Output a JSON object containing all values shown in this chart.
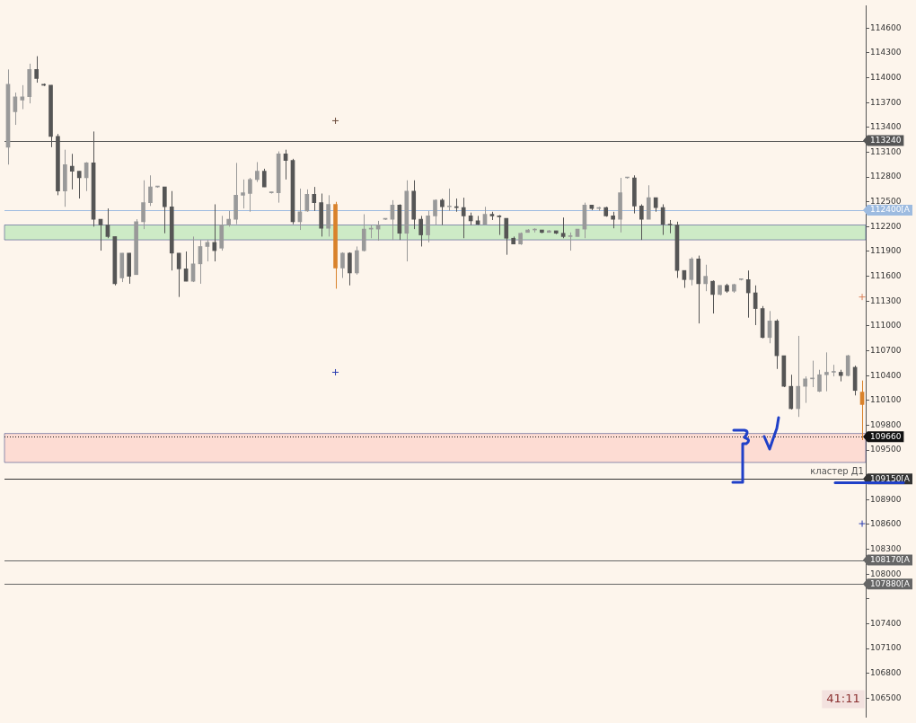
{
  "chart_data": {
    "type": "candlestick",
    "categories": [
      null,
      null,
      null,
      null,
      null,
      null,
      null,
      null,
      null,
      null,
      null,
      null,
      null,
      null,
      null,
      null,
      null,
      null,
      null,
      null,
      null,
      null,
      null,
      null,
      null,
      null,
      null,
      null,
      null,
      null,
      null,
      null,
      null,
      null,
      null,
      null,
      null,
      null,
      null,
      null,
      null,
      null,
      null,
      null,
      null,
      null,
      null,
      null,
      null,
      null,
      null,
      null,
      null,
      null,
      null,
      null,
      null,
      null,
      null,
      null,
      null,
      null,
      null,
      null,
      null,
      null,
      null,
      null,
      null,
      null,
      null,
      null,
      null,
      null,
      null,
      null,
      null,
      null,
      null,
      null,
      null,
      null,
      null,
      null,
      null,
      null,
      null,
      null,
      null,
      null,
      null,
      null,
      null,
      null,
      null,
      null,
      null,
      null,
      null,
      null,
      null,
      null,
      null,
      null,
      null,
      null,
      null,
      null,
      null,
      null,
      null,
      null,
      null,
      null,
      null,
      null,
      null,
      null,
      null,
      null,
      null
    ],
    "ohlc": [
      [
        113160,
        114100,
        112950,
        113920
      ],
      [
        113590,
        113820,
        113430,
        113770
      ],
      [
        113730,
        113910,
        113620,
        113770
      ],
      [
        113770,
        114170,
        113690,
        114100
      ],
      [
        114100,
        114260,
        113940,
        113990
      ],
      [
        113920,
        113930,
        113900,
        113910
      ],
      [
        113910,
        113910,
        113160,
        113290
      ],
      [
        113290,
        113320,
        112580,
        112630
      ],
      [
        112630,
        113130,
        112440,
        112950
      ],
      [
        112930,
        113080,
        112650,
        112870
      ],
      [
        112870,
        112870,
        112540,
        112790
      ],
      [
        112790,
        112980,
        112630,
        112970
      ],
      [
        112970,
        113350,
        112200,
        112290
      ],
      [
        112290,
        112290,
        111910,
        112220
      ],
      [
        112220,
        112420,
        112060,
        112080
      ],
      [
        112080,
        112080,
        111490,
        111510
      ],
      [
        111580,
        111880,
        111530,
        111880
      ],
      [
        111880,
        111880,
        111510,
        111600
      ],
      [
        111620,
        112290,
        111620,
        112260
      ],
      [
        112260,
        112760,
        112170,
        112490
      ],
      [
        112490,
        112820,
        112450,
        112680
      ],
      [
        112680,
        112690,
        112670,
        112680
      ],
      [
        112680,
        112680,
        112120,
        112440
      ],
      [
        112440,
        112630,
        111670,
        111880
      ],
      [
        111880,
        111880,
        111350,
        111690
      ],
      [
        111690,
        111900,
        111540,
        111540
      ],
      [
        111540,
        112080,
        111530,
        111750
      ],
      [
        111750,
        112040,
        111510,
        111960
      ],
      [
        111960,
        112040,
        111780,
        112010
      ],
      [
        112010,
        112470,
        111780,
        111910
      ],
      [
        111940,
        112330,
        111910,
        112220
      ],
      [
        112220,
        112390,
        112200,
        112290
      ],
      [
        112290,
        112970,
        112230,
        112580
      ],
      [
        112580,
        112770,
        112420,
        112610
      ],
      [
        112600,
        112790,
        112380,
        112770
      ],
      [
        112770,
        112980,
        112740,
        112870
      ],
      [
        112870,
        112900,
        112680,
        112680
      ],
      [
        112610,
        112620,
        112600,
        112610
      ],
      [
        112610,
        113110,
        112490,
        113080
      ],
      [
        113080,
        113130,
        112770,
        113000
      ],
      [
        113000,
        113020,
        112230,
        112260
      ],
      [
        112260,
        112660,
        112160,
        112380
      ],
      [
        112390,
        112650,
        112380,
        112590
      ],
      [
        112590,
        112680,
        112390,
        112490
      ],
      [
        112490,
        112600,
        112080,
        112180
      ],
      [
        112180,
        112580,
        112080,
        112470
      ],
      [
        112470,
        112500,
        111450,
        111700
      ],
      [
        111700,
        111890,
        111580,
        111880
      ],
      [
        111880,
        111890,
        111490,
        111640
      ],
      [
        111640,
        111960,
        111620,
        111910
      ],
      [
        111910,
        112350,
        111900,
        112170
      ],
      [
        112170,
        112220,
        112060,
        112170
      ],
      [
        112170,
        112270,
        112030,
        112220
      ],
      [
        112290,
        112300,
        112280,
        112290
      ],
      [
        112290,
        112520,
        112040,
        112460
      ],
      [
        112460,
        112470,
        112040,
        112120
      ],
      [
        112120,
        112760,
        111780,
        112630
      ],
      [
        112630,
        112760,
        112170,
        112290
      ],
      [
        112290,
        112330,
        111960,
        112100
      ],
      [
        112100,
        112390,
        112010,
        112330
      ],
      [
        112330,
        112530,
        112220,
        112520
      ],
      [
        112520,
        112540,
        112220,
        112440
      ],
      [
        112440,
        112660,
        112390,
        112440
      ],
      [
        112440,
        112540,
        112380,
        112430
      ],
      [
        112430,
        112550,
        112060,
        112330
      ],
      [
        112330,
        112370,
        112220,
        112270
      ],
      [
        112270,
        112330,
        112220,
        112230
      ],
      [
        112230,
        112440,
        112220,
        112350
      ],
      [
        112350,
        112380,
        112280,
        112330
      ],
      [
        112330,
        112340,
        112100,
        112320
      ],
      [
        112300,
        112300,
        111860,
        112060
      ],
      [
        112060,
        112080,
        111990,
        111990
      ],
      [
        111990,
        112130,
        111980,
        112120
      ],
      [
        112130,
        112170,
        112130,
        112160
      ],
      [
        112160,
        112180,
        112130,
        112170
      ],
      [
        112160,
        112160,
        112120,
        112130
      ],
      [
        112130,
        112160,
        112130,
        112150
      ],
      [
        112150,
        112150,
        112110,
        112120
      ],
      [
        112120,
        112310,
        112060,
        112080
      ],
      [
        112080,
        112130,
        111910,
        112080
      ],
      [
        112080,
        112170,
        112080,
        112170
      ],
      [
        112170,
        112490,
        112060,
        112460
      ],
      [
        112460,
        112460,
        112400,
        112420
      ],
      [
        112420,
        112440,
        112390,
        112430
      ],
      [
        112430,
        112440,
        112320,
        112330
      ],
      [
        112330,
        112380,
        112180,
        112290
      ],
      [
        112290,
        112790,
        112130,
        112610
      ],
      [
        112790,
        112800,
        112780,
        112790
      ],
      [
        112790,
        112820,
        112360,
        112450
      ],
      [
        112450,
        112470,
        112040,
        112290
      ],
      [
        112290,
        112700,
        112290,
        112550
      ],
      [
        112550,
        112550,
        112380,
        112430
      ],
      [
        112430,
        112470,
        112100,
        112230
      ],
      [
        112230,
        112280,
        112120,
        112220
      ],
      [
        112220,
        112260,
        111580,
        111670
      ],
      [
        111670,
        111670,
        111460,
        111560
      ],
      [
        111560,
        111830,
        111490,
        111810
      ],
      [
        111810,
        111850,
        111030,
        111510
      ],
      [
        111510,
        111740,
        111420,
        111600
      ],
      [
        111540,
        111550,
        111150,
        111380
      ],
      [
        111380,
        111490,
        111370,
        111490
      ],
      [
        111490,
        111510,
        111400,
        111420
      ],
      [
        111420,
        111510,
        111400,
        111500
      ],
      [
        111560,
        111570,
        111550,
        111560
      ],
      [
        111560,
        111670,
        111100,
        111400
      ],
      [
        111400,
        111490,
        111010,
        111210
      ],
      [
        111210,
        111240,
        110850,
        110860
      ],
      [
        110860,
        111180,
        110790,
        111060
      ],
      [
        111060,
        111080,
        110480,
        110640
      ],
      [
        110640,
        110640,
        110260,
        110270
      ],
      [
        110270,
        110410,
        109990,
        110000
      ],
      [
        110000,
        110880,
        109900,
        110270
      ],
      [
        110270,
        110390,
        110070,
        110360
      ],
      [
        110360,
        110580,
        110260,
        110370
      ],
      [
        110210,
        110470,
        110200,
        110410
      ],
      [
        110410,
        110680,
        110210,
        110440
      ],
      [
        110440,
        110530,
        110390,
        110440
      ],
      [
        110440,
        110470,
        110330,
        110400
      ],
      [
        110400,
        110650,
        110390,
        110640
      ],
      [
        110500,
        110520,
        110160,
        110220
      ],
      [
        110200,
        110340,
        109620,
        110050
      ]
    ],
    "colors": [
      "#999999",
      "#999999",
      "#999999",
      "#999999",
      "#555555",
      "#555555",
      "#555555",
      "#555555",
      "#999999",
      "#555555",
      "#555555",
      "#999999",
      "#555555",
      "#555555",
      "#555555",
      "#555555",
      "#999999",
      "#555555",
      "#999999",
      "#999999",
      "#999999",
      "#999999",
      "#555555",
      "#555555",
      "#555555",
      "#555555",
      "#999999",
      "#999999",
      "#999999",
      "#555555",
      "#999999",
      "#999999",
      "#999999",
      "#999999",
      "#999999",
      "#999999",
      "#555555",
      "#999999",
      "#999999",
      "#555555",
      "#555555",
      "#999999",
      "#999999",
      "#555555",
      "#555555",
      "#999999",
      "#d9822b",
      "#999999",
      "#555555",
      "#999999",
      "#999999",
      "#999999",
      "#999999",
      "#999999",
      "#999999",
      "#555555",
      "#999999",
      "#555555",
      "#555555",
      "#999999",
      "#999999",
      "#555555",
      "#999999",
      "#555555",
      "#555555",
      "#555555",
      "#555555",
      "#999999",
      "#555555",
      "#555555",
      "#555555",
      "#555555",
      "#999999",
      "#999999",
      "#999999",
      "#555555",
      "#999999",
      "#555555",
      "#555555",
      "#999999",
      "#999999",
      "#999999",
      "#555555",
      "#999999",
      "#555555",
      "#555555",
      "#999999",
      "#999999",
      "#555555",
      "#555555",
      "#999999",
      "#555555",
      "#555555",
      "#555555",
      "#555555",
      "#555555",
      "#999999",
      "#555555",
      "#999999",
      "#555555",
      "#999999",
      "#555555",
      "#999999",
      "#999999",
      "#555555",
      "#555555",
      "#555555",
      "#999999",
      "#555555",
      "#555555",
      "#555555",
      "#999999",
      "#999999",
      "#999999",
      "#999999",
      "#999999",
      "#999999",
      "#555555",
      "#999999",
      "#555555",
      "#d9822b"
    ],
    "series": [
      {
        "type": "scatter",
        "color": "#6b4a3a",
        "values": [
          null,
          null,
          null,
          null,
          null,
          null,
          null,
          null,
          null,
          null,
          null,
          null,
          null,
          null,
          null,
          null,
          null,
          null,
          null,
          null,
          null,
          null,
          null,
          null,
          null,
          null,
          null,
          null,
          null,
          null,
          null,
          null,
          null,
          null,
          null,
          null,
          null,
          null,
          null,
          null,
          null,
          null,
          null,
          null,
          null,
          null,
          113480,
          null,
          null,
          null,
          null,
          null,
          null,
          null,
          null,
          null,
          null,
          null,
          null,
          null,
          null,
          null,
          null,
          null,
          null,
          null,
          null,
          null,
          null,
          null,
          null,
          null,
          null,
          null,
          null,
          null,
          null,
          null,
          null,
          null,
          null,
          null,
          null,
          null,
          null,
          null,
          null,
          null,
          null,
          null,
          null,
          null,
          null,
          null,
          null,
          null,
          null,
          null,
          null,
          null,
          null,
          null,
          null,
          null,
          null,
          null,
          null,
          null,
          null,
          null,
          null,
          null,
          null,
          null,
          null,
          null,
          null,
          null,
          null,
          null,
          null
        ]
      },
      {
        "type": "scatter",
        "color": "#2a3cb0",
        "values": [
          null,
          null,
          null,
          null,
          null,
          null,
          null,
          null,
          null,
          null,
          null,
          null,
          null,
          null,
          null,
          null,
          null,
          null,
          null,
          null,
          null,
          null,
          null,
          null,
          null,
          null,
          null,
          null,
          null,
          null,
          null,
          null,
          null,
          null,
          null,
          null,
          null,
          null,
          null,
          null,
          null,
          null,
          null,
          null,
          null,
          null,
          110440,
          null,
          null,
          null,
          null,
          null,
          null,
          null,
          null,
          null,
          null,
          null,
          null,
          null,
          null,
          null,
          null,
          null,
          null,
          null,
          null,
          null,
          null,
          null,
          null,
          null,
          null,
          null,
          null,
          null,
          null,
          null,
          null,
          null,
          null,
          null,
          null,
          null,
          null,
          null,
          null,
          null,
          null,
          null,
          null,
          null,
          null,
          null,
          null,
          null,
          null,
          null,
          null,
          null,
          null,
          null,
          null,
          null,
          null,
          null,
          null,
          null,
          null,
          null,
          null,
          null,
          null,
          null,
          null,
          null,
          null,
          null,
          null,
          null,
          108610
        ]
      },
      {
        "type": "scatter",
        "color": "#d9825b",
        "values": [
          null,
          null,
          null,
          null,
          null,
          null,
          null,
          null,
          null,
          null,
          null,
          null,
          null,
          null,
          null,
          null,
          null,
          null,
          null,
          null,
          null,
          null,
          null,
          null,
          null,
          null,
          null,
          null,
          null,
          null,
          null,
          null,
          null,
          null,
          null,
          null,
          null,
          null,
          null,
          null,
          null,
          null,
          null,
          null,
          null,
          null,
          null,
          null,
          null,
          null,
          null,
          null,
          null,
          null,
          null,
          null,
          null,
          null,
          null,
          null,
          null,
          null,
          null,
          null,
          null,
          null,
          null,
          null,
          null,
          null,
          null,
          null,
          null,
          null,
          null,
          null,
          null,
          null,
          null,
          null,
          null,
          null,
          null,
          null,
          null,
          null,
          null,
          null,
          null,
          null,
          null,
          null,
          null,
          null,
          null,
          null,
          null,
          null,
          null,
          null,
          null,
          null,
          null,
          null,
          null,
          null,
          null,
          null,
          null,
          null,
          null,
          null,
          null,
          null,
          null,
          null,
          null,
          null,
          null,
          null,
          111350
        ]
      }
    ],
    "marker": "cross",
    "ylim": [
      106270,
      114870
    ],
    "yticks": [
      106500,
      106800,
      107100,
      107400,
      {
        "value": 107700,
        "label": null
      },
      108000,
      108300,
      108600,
      108900,
      {
        "value": 109200,
        "label": null
      },
      109500,
      109800,
      110100,
      110400,
      110700,
      111000,
      111300,
      111600,
      111900,
      112200,
      112500,
      112800,
      113100,
      113400,
      113700,
      114000,
      114300,
      114600
    ],
    "bands": [
      {
        "axis": "y",
        "from": 112040,
        "to": 112220,
        "color": "#cdebc6"
      },
      {
        "axis": "y",
        "from": 109350,
        "to": 109700,
        "color": "#fddcd3"
      }
    ],
    "ref_lines": [
      {
        "axis": "y",
        "value": 113240,
        "label": "113240",
        "color": "#555555"
      },
      {
        "axis": "y",
        "value": 112400,
        "label": "112400[A",
        "color": "#9dbbe0"
      },
      {
        "axis": "y",
        "value": 109660,
        "label": "109660",
        "color": "#111111",
        "line_style": "dotted"
      },
      {
        "axis": "y",
        "value": 109150,
        "label": "109150[A",
        "color": "#333333"
      },
      {
        "axis": "y",
        "value": 108170,
        "label": "108170[A",
        "color": "#666666"
      },
      {
        "axis": "y",
        "value": 107880,
        "label": "107880[A",
        "color": "#666666"
      }
    ],
    "annotations": [
      {
        "text": "кластер Д1",
        "y": 109150
      },
      "41:11"
    ],
    "grid": false,
    "legend": false,
    "tick_labels": "y"
  }
}
